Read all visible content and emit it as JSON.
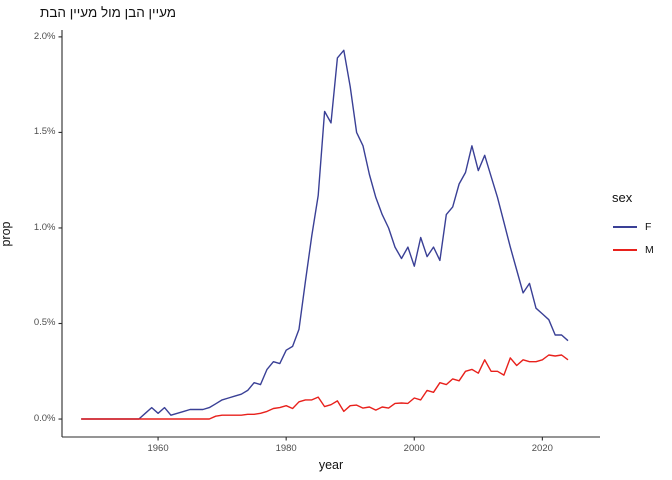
{
  "title": "מעיין הבן מול מעיין הבת",
  "axes": {
    "x_label": "year",
    "y_label": "prop"
  },
  "legend": {
    "title": "sex",
    "entries": [
      {
        "label": "F",
        "color": "#3A4096"
      },
      {
        "label": "M",
        "color": "#E8211C"
      }
    ]
  },
  "colors": {
    "axis_line": "#2b2b2b",
    "tick_text": "#4d4d4d",
    "series_f": "#3A4096",
    "series_m": "#E8211C"
  },
  "chart_data": {
    "type": "line",
    "title": "מעיין הבן מול מעיין הבת",
    "xlabel": "year",
    "ylabel": "prop",
    "legend_title": "sex",
    "legend_position": "right",
    "grid": false,
    "xlim": [
      1945,
      2029
    ],
    "ylim": [
      -0.094,
      2.036
    ],
    "x_ticks": {
      "values": [
        1960,
        1980,
        2000,
        2020
      ],
      "labels": [
        "1960",
        "1980",
        "2000",
        "2020"
      ]
    },
    "y_ticks": {
      "values": [
        0,
        0.5,
        1.0,
        1.5,
        2.0
      ],
      "labels": [
        "0.0%",
        "0.5%",
        "1.0%",
        "1.5%",
        "2.0%"
      ]
    },
    "x": [
      1948,
      1949,
      1950,
      1951,
      1952,
      1953,
      1954,
      1955,
      1956,
      1957,
      1958,
      1959,
      1960,
      1961,
      1962,
      1963,
      1964,
      1965,
      1966,
      1967,
      1968,
      1969,
      1970,
      1971,
      1972,
      1973,
      1974,
      1975,
      1976,
      1977,
      1978,
      1979,
      1980,
      1981,
      1982,
      1983,
      1984,
      1985,
      1986,
      1987,
      1988,
      1989,
      1990,
      1991,
      1992,
      1993,
      1994,
      1995,
      1996,
      1997,
      1998,
      1999,
      2000,
      2001,
      2002,
      2003,
      2004,
      2005,
      2006,
      2007,
      2008,
      2009,
      2010,
      2011,
      2012,
      2013,
      2014,
      2015,
      2016,
      2017,
      2018,
      2019,
      2020,
      2021,
      2022,
      2023,
      2024
    ],
    "series": [
      {
        "name": "F",
        "color": "#3A4096",
        "values": [
          0,
          0,
          0,
          0,
          0,
          0,
          0,
          0,
          0,
          0,
          0.03,
          0.06,
          0.03,
          0.06,
          0.02,
          0.03,
          0.04,
          0.05,
          0.05,
          0.05,
          0.06,
          0.08,
          0.1,
          0.11,
          0.12,
          0.13,
          0.15,
          0.19,
          0.18,
          0.26,
          0.3,
          0.29,
          0.36,
          0.38,
          0.47,
          0.72,
          0.96,
          1.17,
          1.61,
          1.55,
          1.89,
          1.93,
          1.74,
          1.5,
          1.43,
          1.28,
          1.16,
          1.07,
          1.0,
          0.9,
          0.84,
          0.9,
          0.8,
          0.95,
          0.85,
          0.9,
          0.83,
          1.07,
          1.11,
          1.23,
          1.29,
          1.43,
          1.3,
          1.38,
          1.27,
          1.16,
          1.03,
          0.9,
          0.78,
          0.66,
          0.71,
          0.58,
          0.55,
          0.52,
          0.44,
          0.44,
          0.41
        ]
      },
      {
        "name": "M",
        "color": "#E8211C",
        "values": [
          0,
          0,
          0,
          0,
          0,
          0,
          0,
          0,
          0,
          0,
          0,
          0,
          0,
          0,
          0,
          0,
          0,
          0,
          0,
          0,
          0,
          0.015,
          0.02,
          0.02,
          0.02,
          0.02,
          0.025,
          0.025,
          0.03,
          0.04,
          0.055,
          0.06,
          0.07,
          0.055,
          0.09,
          0.1,
          0.1,
          0.115,
          0.065,
          0.075,
          0.095,
          0.04,
          0.07,
          0.073,
          0.057,
          0.063,
          0.047,
          0.063,
          0.057,
          0.082,
          0.084,
          0.082,
          0.11,
          0.1,
          0.15,
          0.14,
          0.19,
          0.18,
          0.21,
          0.2,
          0.25,
          0.26,
          0.24,
          0.31,
          0.25,
          0.25,
          0.23,
          0.32,
          0.28,
          0.31,
          0.3,
          0.3,
          0.31,
          0.335,
          0.33,
          0.335,
          0.31
        ]
      }
    ]
  }
}
